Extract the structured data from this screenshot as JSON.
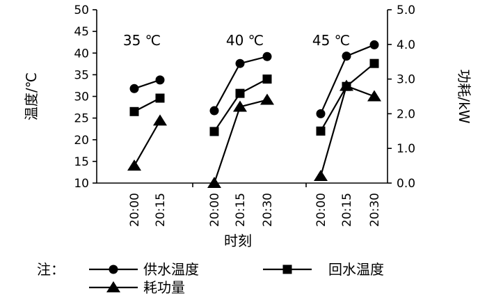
{
  "chart_data": {
    "type": "line",
    "xlabel": "时刻",
    "ylabel_left": "温度/℃",
    "ylabel_right": "功耗/kW",
    "ylim_left": [
      10,
      50
    ],
    "yticks_left": [
      "10",
      "15",
      "20",
      "25",
      "30",
      "35",
      "40",
      "45",
      "50"
    ],
    "ylim_right": [
      0,
      5
    ],
    "yticks_right": [
      "0.0",
      "1.0",
      "2.0",
      "3.0",
      "4.0",
      "5.0"
    ],
    "legend_prefix": "注：",
    "legend_placement": "bottom",
    "groups": [
      {
        "label": "35 ℃",
        "x": [
          "20:00",
          "20:15"
        ],
        "series": [
          {
            "name": "供水温度",
            "marker": "circle",
            "axis": "left",
            "values": [
              31.8,
              33.8
            ]
          },
          {
            "name": "回水温度",
            "marker": "square",
            "axis": "left",
            "values": [
              26.5,
              29.6
            ]
          },
          {
            "name": "耗功量",
            "marker": "triangle",
            "axis": "right",
            "values": [
              0.5,
              1.8
            ]
          }
        ]
      },
      {
        "label": "40 ℃",
        "x": [
          "20:00",
          "20:15",
          "20:30"
        ],
        "series": [
          {
            "name": "供水温度",
            "marker": "circle",
            "axis": "left",
            "values": [
              26.7,
              37.6,
              39.2
            ]
          },
          {
            "name": "回水温度",
            "marker": "square",
            "axis": "left",
            "values": [
              21.9,
              30.7,
              34.0
            ]
          },
          {
            "name": "耗功量",
            "marker": "triangle",
            "axis": "right",
            "values": [
              0.0,
              2.2,
              2.4
            ]
          }
        ]
      },
      {
        "label": "45 ℃",
        "x": [
          "20:00",
          "20:15",
          "20:30"
        ],
        "series": [
          {
            "name": "供水温度",
            "marker": "circle",
            "axis": "left",
            "values": [
              26.0,
              39.3,
              41.9
            ]
          },
          {
            "name": "回水温度",
            "marker": "square",
            "axis": "left",
            "values": [
              22.0,
              32.3,
              37.6
            ]
          },
          {
            "name": "耗功量",
            "marker": "triangle",
            "axis": "right",
            "values": [
              0.2,
              2.8,
              2.5
            ]
          }
        ]
      }
    ]
  }
}
